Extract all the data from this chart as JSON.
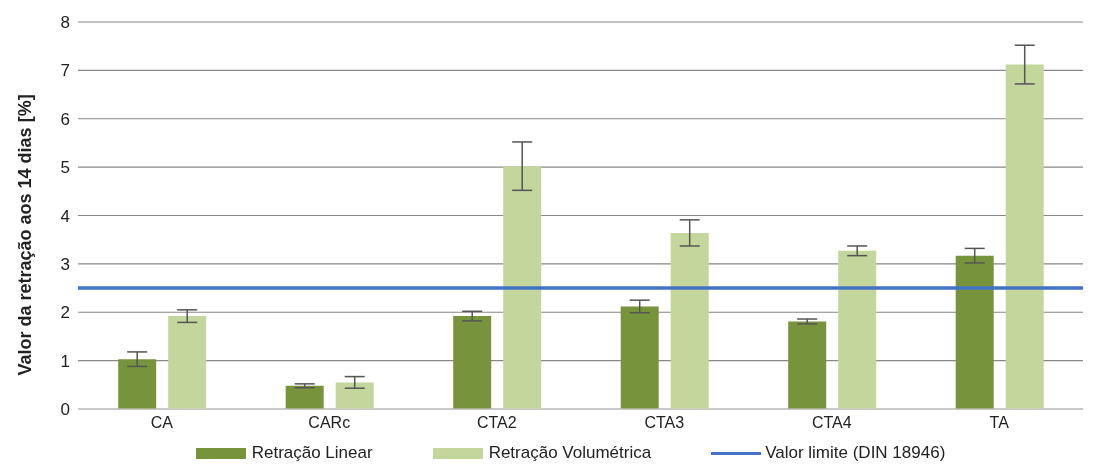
{
  "chart_data": {
    "type": "bar",
    "ylabel": "Valor da retração aos 14 dias [%]",
    "categories": [
      "CA",
      "CARc",
      "CTA2",
      "CTA3",
      "CTA4",
      "TA"
    ],
    "series": [
      {
        "name": "Retração Linear",
        "color": "#77933c",
        "values": [
          1.03,
          0.48,
          1.92,
          2.12,
          1.81,
          3.17
        ],
        "errors": [
          0.15,
          0.04,
          0.1,
          0.13,
          0.05,
          0.15
        ]
      },
      {
        "name": "Retração Volumétrica",
        "color": "#c3d69b",
        "values": [
          1.92,
          0.55,
          5.02,
          3.64,
          3.27,
          7.12
        ],
        "errors": [
          0.13,
          0.12,
          0.5,
          0.27,
          0.1,
          0.4
        ]
      }
    ],
    "ylim": [
      0,
      8
    ],
    "yticks": [
      0,
      1,
      2,
      3,
      4,
      5,
      6,
      7,
      8
    ],
    "grid": "y",
    "legend": "bottom",
    "ref_lines": [
      {
        "axis": "y",
        "value": 2.5,
        "label": "Valor limite (DIN 18946)",
        "color": "#4472c4"
      }
    ]
  }
}
